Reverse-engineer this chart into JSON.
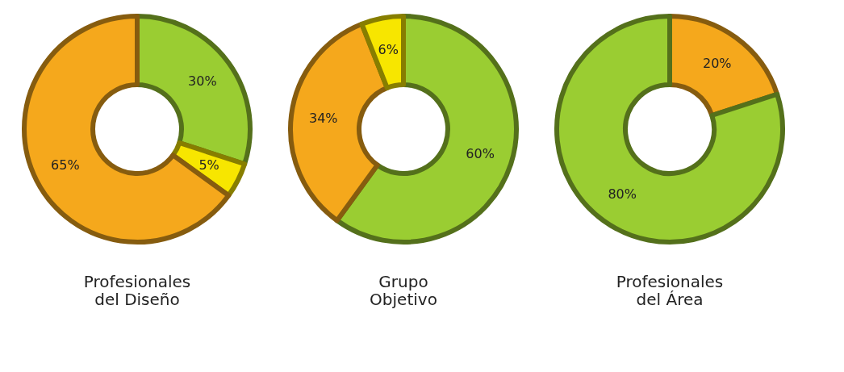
{
  "chart_data": [
    {
      "type": "donut",
      "title": "Profesionales del Diseño",
      "categories": [
        null,
        null,
        null
      ],
      "values": [
        30,
        5,
        65
      ],
      "colors": [
        "#9acd32",
        "#f7e600",
        "#f5a81c"
      ],
      "value_labels": [
        "30%",
        "5%",
        "65%"
      ]
    },
    {
      "type": "donut",
      "title": "Grupo Objetivo",
      "categories": [
        null,
        null,
        null
      ],
      "values": [
        60,
        34,
        6
      ],
      "colors": [
        "#9acd32",
        "#f5a81c",
        "#f7e600"
      ],
      "value_labels": [
        "60%",
        "34%",
        "6%"
      ]
    },
    {
      "type": "donut",
      "title": "Profesionales del Área",
      "categories": [
        null,
        null
      ],
      "values": [
        20,
        80
      ],
      "colors": [
        "#f5a81c",
        "#9acd32"
      ],
      "value_labels": [
        "20%",
        "80%"
      ]
    }
  ]
}
